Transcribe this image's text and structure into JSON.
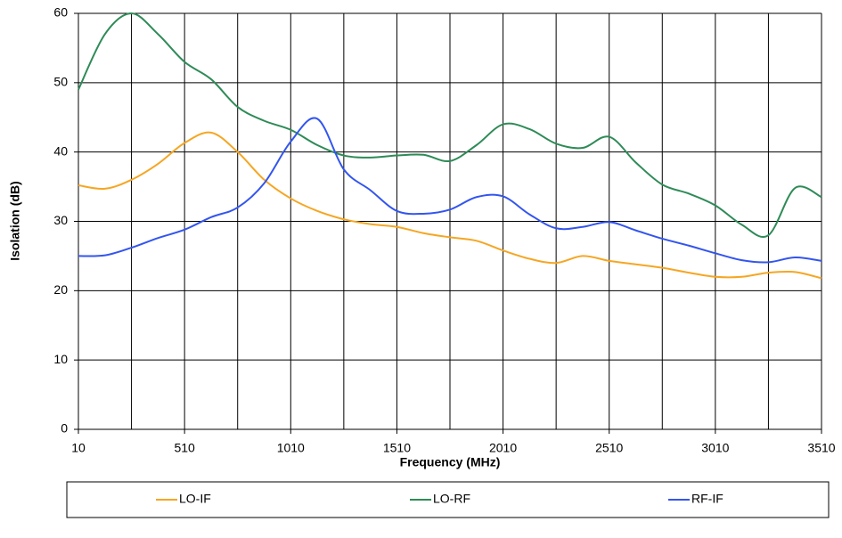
{
  "chart_data": {
    "type": "line",
    "xlabel": "Frequency (MHz)",
    "ylabel": "Isolation (dB)",
    "x": [
      10,
      135,
      260,
      385,
      510,
      635,
      760,
      885,
      1010,
      1135,
      1260,
      1385,
      1510,
      1635,
      1760,
      1885,
      2010,
      2135,
      2260,
      2385,
      2510,
      2635,
      2760,
      2885,
      3010,
      3135,
      3260,
      3385,
      3510
    ],
    "series": [
      {
        "name": "LO-IF",
        "color": "#f5a623",
        "values": [
          35.2,
          34.7,
          36,
          38.3,
          41.3,
          42.8,
          40,
          36,
          33.3,
          31.5,
          30.3,
          29.6,
          29.2,
          28.3,
          27.7,
          27.2,
          25.8,
          24.6,
          24,
          25,
          24.3,
          23.8,
          23.3,
          22.6,
          22,
          22,
          22.6,
          22.7,
          21.8
        ]
      },
      {
        "name": "LO-RF",
        "color": "#2e8b57",
        "values": [
          49,
          57,
          60,
          57,
          53,
          50.5,
          46.5,
          44.5,
          43.2,
          41,
          39.5,
          39.2,
          39.5,
          39.6,
          38.7,
          41,
          44,
          43.3,
          41.2,
          40.6,
          42.2,
          38.5,
          35.3,
          34,
          32.3,
          29.5,
          28,
          34.8,
          33.5
        ]
      },
      {
        "name": "RF-IF",
        "color": "#3355ee",
        "values": [
          25,
          25.1,
          26.2,
          27.6,
          28.8,
          30.6,
          32,
          35.5,
          41.5,
          44.8,
          37.5,
          34.5,
          31.5,
          31.1,
          31.7,
          33.5,
          33.6,
          31,
          29,
          29.2,
          29.9,
          28.7,
          27.5,
          26.5,
          25.4,
          24.4,
          24.1,
          24.8,
          24.3
        ]
      }
    ],
    "xlim": [
      10,
      3510
    ],
    "xticks": [
      10,
      510,
      1010,
      1510,
      2010,
      2510,
      3010,
      3510
    ],
    "xgrid": [
      10,
      260,
      510,
      760,
      1010,
      1260,
      1510,
      1760,
      2010,
      2260,
      2510,
      2760,
      3010,
      3260,
      3510
    ],
    "ylim": [
      0,
      60
    ],
    "yticks": [
      0,
      10,
      20,
      30,
      40,
      50,
      60
    ],
    "grid": true,
    "legend": "bottom"
  }
}
